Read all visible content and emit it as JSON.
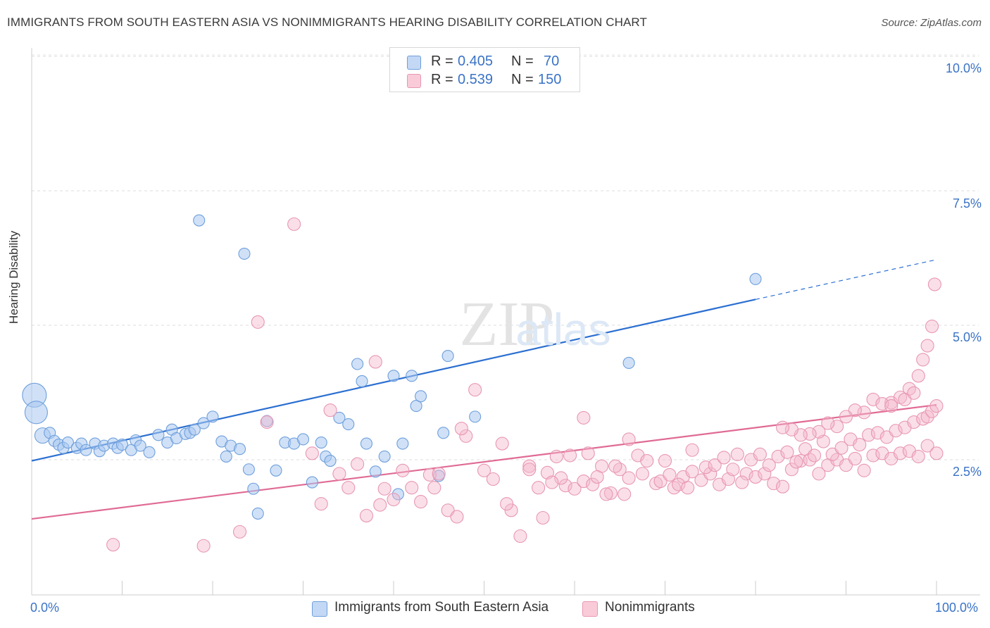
{
  "title": "IMMIGRANTS FROM SOUTH EASTERN ASIA VS NONIMMIGRANTS HEARING DISABILITY CORRELATION CHART",
  "source": "Source: ZipAtlas.com",
  "legend": {
    "rows": [
      {
        "r_label": "R =",
        "r_value": "0.405",
        "n_label": "N =",
        "n_value": "70"
      },
      {
        "r_label": "R =",
        "r_value": "0.539",
        "n_label": "N =",
        "n_value": "150"
      }
    ]
  },
  "bottom_legend": {
    "series1": "Immigrants from South Eastern Asia",
    "series2": "Nonimmigrants"
  },
  "watermark": "ZIPatlas",
  "chart_data": {
    "type": "scatter",
    "title": "IMMIGRANTS FROM SOUTH EASTERN ASIA VS NONIMMIGRANTS HEARING DISABILITY CORRELATION CHART",
    "xlabel": "",
    "ylabel": "Hearing Disability",
    "xlim": [
      0,
      100
    ],
    "ylim": [
      0,
      10.5
    ],
    "x_tick_labels": [
      "0.0%",
      "100.0%"
    ],
    "y_ticks": [
      2.5,
      5.0,
      7.5,
      10.0
    ],
    "y_tick_labels": [
      "2.5%",
      "5.0%",
      "7.5%",
      "10.0%"
    ],
    "colors": {
      "series1": "#a9c8f0",
      "series1_line": "#2b6fd1",
      "series2": "#f5b8cb",
      "series2_line": "#e06a94",
      "axis_text": "#3a73c6"
    },
    "series": [
      {
        "name": "Immigrants from South Eastern Asia",
        "trend": {
          "x0": 0,
          "y0": 2.48,
          "x1": 80,
          "y1": 5.48,
          "dashed_to_x": 100,
          "dashed_to_y": 6.22
        },
        "points": [
          [
            0.3,
            3.7
          ],
          [
            0.5,
            3.38
          ],
          [
            1.2,
            2.95
          ],
          [
            2,
            3.0
          ],
          [
            2.5,
            2.85
          ],
          [
            3,
            2.78
          ],
          [
            3.5,
            2.72
          ],
          [
            4,
            2.82
          ],
          [
            5,
            2.72
          ],
          [
            5.5,
            2.8
          ],
          [
            6,
            2.68
          ],
          [
            7,
            2.8
          ],
          [
            7.5,
            2.66
          ],
          [
            8,
            2.76
          ],
          [
            9,
            2.8
          ],
          [
            9.5,
            2.72
          ],
          [
            10,
            2.78
          ],
          [
            11,
            2.68
          ],
          [
            11.5,
            2.86
          ],
          [
            12,
            2.76
          ],
          [
            13,
            2.64
          ],
          [
            14,
            2.96
          ],
          [
            15,
            2.82
          ],
          [
            15.5,
            3.06
          ],
          [
            16,
            2.9
          ],
          [
            17,
            2.98
          ],
          [
            17.5,
            3.0
          ],
          [
            18,
            3.06
          ],
          [
            19,
            3.18
          ],
          [
            20,
            3.3
          ],
          [
            21,
            2.84
          ],
          [
            21.5,
            2.56
          ],
          [
            22,
            2.76
          ],
          [
            23,
            2.7
          ],
          [
            18.5,
            6.95
          ],
          [
            23.5,
            6.33
          ],
          [
            24,
            2.32
          ],
          [
            24.5,
            1.96
          ],
          [
            25,
            1.5
          ],
          [
            26,
            3.22
          ],
          [
            27,
            2.3
          ],
          [
            28,
            2.82
          ],
          [
            29,
            2.8
          ],
          [
            30,
            2.88
          ],
          [
            31,
            2.08
          ],
          [
            32,
            2.82
          ],
          [
            32.5,
            2.56
          ],
          [
            33,
            2.48
          ],
          [
            34,
            3.28
          ],
          [
            35,
            3.16
          ],
          [
            36,
            4.28
          ],
          [
            36.5,
            3.96
          ],
          [
            37,
            2.8
          ],
          [
            38,
            2.28
          ],
          [
            39,
            2.56
          ],
          [
            40,
            4.06
          ],
          [
            40.5,
            1.86
          ],
          [
            41,
            2.8
          ],
          [
            42,
            4.06
          ],
          [
            42.5,
            3.5
          ],
          [
            43,
            3.68
          ],
          [
            45,
            2.2
          ],
          [
            45.5,
            3.0
          ],
          [
            46,
            4.43
          ],
          [
            49,
            3.3
          ],
          [
            66,
            4.3
          ],
          [
            80,
            5.86
          ]
        ]
      },
      {
        "name": "Nonimmigrants",
        "trend": {
          "x0": 0,
          "y0": 1.4,
          "x1": 100,
          "y1": 3.52
        },
        "points": [
          [
            9,
            0.92
          ],
          [
            19,
            0.9
          ],
          [
            23,
            1.16
          ],
          [
            25,
            5.06
          ],
          [
            26,
            3.2
          ],
          [
            29,
            6.88
          ],
          [
            31,
            2.62
          ],
          [
            32,
            1.68
          ],
          [
            33,
            3.42
          ],
          [
            34,
            2.24
          ],
          [
            35,
            1.98
          ],
          [
            36,
            2.42
          ],
          [
            37,
            1.46
          ],
          [
            38,
            4.32
          ],
          [
            38.5,
            1.66
          ],
          [
            39,
            1.96
          ],
          [
            40,
            1.76
          ],
          [
            41,
            2.3
          ],
          [
            42,
            1.98
          ],
          [
            43,
            1.72
          ],
          [
            44,
            2.22
          ],
          [
            45,
            2.24
          ],
          [
            46,
            1.56
          ],
          [
            47,
            1.44
          ],
          [
            48,
            2.94
          ],
          [
            49,
            3.8
          ],
          [
            50,
            2.3
          ],
          [
            51,
            2.14
          ],
          [
            52,
            2.8
          ],
          [
            53,
            1.56
          ],
          [
            54,
            1.08
          ],
          [
            55,
            2.38
          ],
          [
            56,
            1.98
          ],
          [
            57,
            2.26
          ],
          [
            58,
            2.56
          ],
          [
            59,
            2.02
          ],
          [
            60,
            1.96
          ],
          [
            61,
            2.1
          ],
          [
            62,
            2.04
          ],
          [
            63,
            2.38
          ],
          [
            64,
            1.88
          ],
          [
            65,
            2.32
          ],
          [
            65.5,
            1.86
          ],
          [
            66,
            2.16
          ],
          [
            67,
            2.58
          ],
          [
            68,
            2.48
          ],
          [
            69,
            2.06
          ],
          [
            70,
            2.48
          ],
          [
            71,
            1.98
          ],
          [
            72,
            2.18
          ],
          [
            73,
            2.28
          ],
          [
            74,
            2.12
          ],
          [
            75,
            2.24
          ],
          [
            76,
            2.04
          ],
          [
            77,
            2.14
          ],
          [
            78,
            2.6
          ],
          [
            79,
            2.24
          ],
          [
            80,
            2.18
          ],
          [
            81,
            2.24
          ],
          [
            82,
            2.06
          ],
          [
            83,
            2.0
          ],
          [
            84,
            2.32
          ],
          [
            85,
            2.48
          ],
          [
            86,
            2.5
          ],
          [
            87,
            2.24
          ],
          [
            88,
            2.4
          ],
          [
            89,
            2.5
          ],
          [
            90,
            2.4
          ],
          [
            91,
            2.52
          ],
          [
            92,
            2.3
          ],
          [
            93,
            2.58
          ],
          [
            94,
            2.62
          ],
          [
            95,
            2.52
          ],
          [
            96,
            2.62
          ],
          [
            97,
            2.66
          ],
          [
            98,
            2.56
          ],
          [
            99,
            2.76
          ],
          [
            100,
            2.62
          ],
          [
            61,
            3.28
          ],
          [
            66,
            2.88
          ],
          [
            73,
            2.68
          ],
          [
            55,
            2.32
          ],
          [
            61.5,
            2.62
          ],
          [
            63.5,
            1.86
          ],
          [
            58.5,
            2.16
          ],
          [
            57.5,
            2.08
          ],
          [
            44.5,
            1.98
          ],
          [
            47.5,
            3.08
          ],
          [
            52.5,
            1.68
          ],
          [
            56.5,
            1.42
          ],
          [
            64.5,
            2.38
          ],
          [
            59.5,
            2.58
          ],
          [
            62.5,
            2.18
          ],
          [
            67.5,
            2.24
          ],
          [
            69.5,
            2.1
          ],
          [
            70.5,
            2.22
          ],
          [
            71.5,
            2.04
          ],
          [
            72.5,
            1.98
          ],
          [
            74.5,
            2.36
          ],
          [
            75.5,
            2.4
          ],
          [
            76.5,
            2.54
          ],
          [
            77.5,
            2.32
          ],
          [
            78.5,
            2.08
          ],
          [
            79.5,
            2.5
          ],
          [
            80.5,
            2.6
          ],
          [
            81.5,
            2.4
          ],
          [
            82.5,
            2.56
          ],
          [
            83.5,
            2.64
          ],
          [
            84.5,
            2.46
          ],
          [
            85.5,
            2.7
          ],
          [
            86.5,
            2.58
          ],
          [
            87.5,
            2.84
          ],
          [
            88.5,
            2.6
          ],
          [
            89.5,
            2.72
          ],
          [
            90.5,
            2.88
          ],
          [
            91.5,
            2.78
          ],
          [
            92.5,
            2.96
          ],
          [
            93.5,
            3.0
          ],
          [
            94.5,
            2.92
          ],
          [
            95.5,
            3.04
          ],
          [
            96.5,
            3.1
          ],
          [
            97.5,
            3.2
          ],
          [
            98.5,
            3.26
          ],
          [
            99,
            3.3
          ],
          [
            99.5,
            3.4
          ],
          [
            100,
            3.5
          ],
          [
            95,
            3.56
          ],
          [
            96,
            3.66
          ],
          [
            97,
            3.82
          ],
          [
            98,
            4.06
          ],
          [
            98.5,
            4.36
          ],
          [
            99,
            4.62
          ],
          [
            99.5,
            4.98
          ],
          [
            99.8,
            5.76
          ],
          [
            96.5,
            3.62
          ],
          [
            97.5,
            3.74
          ],
          [
            93,
            3.62
          ],
          [
            94,
            3.54
          ],
          [
            95,
            3.5
          ],
          [
            92,
            3.38
          ],
          [
            91,
            3.42
          ],
          [
            90,
            3.3
          ],
          [
            89,
            3.12
          ],
          [
            88,
            3.18
          ],
          [
            87,
            3.02
          ],
          [
            86,
            2.98
          ],
          [
            85,
            2.96
          ],
          [
            84,
            3.06
          ],
          [
            83,
            3.1
          ]
        ]
      }
    ]
  }
}
